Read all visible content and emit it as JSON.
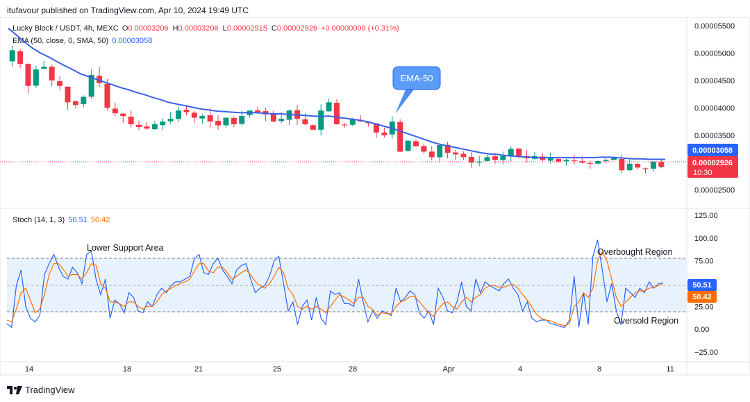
{
  "header": {
    "publisher": "itufavour published on TradingView.com, Apr 10, 2024 19:49 UTC"
  },
  "main_legend": {
    "symbol": "Lucky Block / USDT, 4h, MEXC",
    "o_label": "O",
    "o_value": "0.00003206",
    "h_label": "H",
    "h_value": "0.00003206",
    "l_label": "L",
    "l_value": "0.00002915",
    "c_label": "C",
    "c_value": "0.00002926",
    "change": "+0.00000009 (+0.31%)",
    "ema_label": "EMA (50, close, 0, SMA, 50)",
    "ema_value": "0.00003058"
  },
  "stoch_legend": {
    "label": "Stoch (14, 1, 3)",
    "k_value": "50.51",
    "d_value": "50.42"
  },
  "annotations": {
    "ema_callout": "EMA-50",
    "lower_support": "Lower Support Area",
    "overbought": "Overbought Region",
    "oversold": "Oversold Region"
  },
  "badges": {
    "ema_price": "0.00003058",
    "last_price": "0.00002926",
    "countdown": "10:30",
    "k_value": "50.51",
    "d_value": "50.42"
  },
  "logo_text": "TradingView",
  "colors": {
    "up": "#089981",
    "down": "#f23645",
    "ema": "#3861e6",
    "stoch_k": "#2962ff",
    "stoch_d": "#ff6d00",
    "band_fill": "#e8f2fd"
  },
  "chart_data": [
    {
      "type": "candlestick",
      "title": "Lucky Block / USDT, 4h, MEXC",
      "y_ticks": [
        "0.00005500",
        "0.00005000",
        "0.00004500",
        "0.00004000",
        "0.00003500",
        "0.00003000",
        "0.00002500"
      ],
      "ylim": [
        2.18e-05,
        5.65e-05
      ],
      "x_ticks": [
        "14",
        "18",
        "21",
        "25",
        "28",
        "Apr",
        "4",
        "8",
        "11"
      ],
      "close_series_approx": [
        5.05e-05,
        4.8e-05,
        4.4e-05,
        4.7e-05,
        4.75e-05,
        4.5e-05,
        4.4e-05,
        4.1e-05,
        4.05e-05,
        4.2e-05,
        4.6e-05,
        4.45e-05,
        4e-05,
        3.9e-05,
        3.85e-05,
        3.7e-05,
        3.65e-05,
        3.62e-05,
        3.7e-05,
        3.75e-05,
        3.8e-05,
        3.95e-05,
        3.92e-05,
        3.82e-05,
        3.85e-05,
        3.75e-05,
        3.68e-05,
        3.82e-05,
        3.7e-05,
        3.85e-05,
        3.95e-05,
        3.92e-05,
        3.88e-05,
        3.75e-05,
        3.8e-05,
        3.95e-05,
        3.8e-05,
        3.7e-05,
        3.6e-05,
        3.95e-05,
        4.1e-05,
        3.7e-05,
        3.68e-05,
        3.8e-05,
        3.75e-05,
        3.72e-05,
        3.55e-05,
        3.5e-05,
        3.75e-05,
        3.2e-05,
        3.4e-05,
        3.3e-05,
        3.2e-05,
        3.1e-05,
        3.32e-05,
        3.18e-05,
        3.15e-05,
        3.1e-05,
        3e-05,
        3.02e-05,
        3.1e-05,
        3.05e-05,
        3.12e-05,
        3.25e-05,
        3.12e-05,
        3.08e-05,
        3.12e-05,
        3.05e-05,
        3.08e-05,
        3.02e-05,
        3.05e-05,
        3.03e-05,
        3e-05,
        2.98e-05,
        3.03e-05,
        3.05e-05,
        3.08e-05,
        2.86e-05,
        2.98e-05,
        2.91e-05,
        2.88e-05,
        3.02e-05,
        2.92e-05
      ],
      "ema_series_approx": [
        5.45e-05,
        5.33e-05,
        5.2e-05,
        5.09e-05,
        5e-05,
        4.93e-05,
        4.85e-05,
        4.77e-05,
        4.7e-05,
        4.62e-05,
        4.57e-05,
        4.52e-05,
        4.47e-05,
        4.42e-05,
        4.37e-05,
        4.33e-05,
        4.28e-05,
        4.24e-05,
        4.19e-05,
        4.15e-05,
        4.1e-05,
        4.07e-05,
        4.04e-05,
        4.01e-05,
        3.98e-05,
        3.96e-05,
        3.94e-05,
        3.93e-05,
        3.92e-05,
        3.91e-05,
        3.91e-05,
        3.91e-05,
        3.9e-05,
        3.89e-05,
        3.89e-05,
        3.88e-05,
        3.87e-05,
        3.86e-05,
        3.85e-05,
        3.84e-05,
        3.85e-05,
        3.83e-05,
        3.81e-05,
        3.79e-05,
        3.77e-05,
        3.74e-05,
        3.7e-05,
        3.66e-05,
        3.62e-05,
        3.57e-05,
        3.52e-05,
        3.47e-05,
        3.42e-05,
        3.37e-05,
        3.33e-05,
        3.3e-05,
        3.27e-05,
        3.24e-05,
        3.21e-05,
        3.18e-05,
        3.16e-05,
        3.15e-05,
        3.13e-05,
        3.12e-05,
        3.11e-05,
        3.1e-05,
        3.09e-05,
        3.09e-05,
        3.09e-05,
        3.09e-05,
        3.09e-05,
        3.09e-05,
        3.09e-05,
        3.09e-05,
        3.1e-05,
        3.1e-05,
        3.09e-05,
        3.08e-05,
        3.07e-05,
        3.07e-05,
        3.06e-05,
        3.06e-05,
        3.06e-05
      ],
      "last_close": 2.926e-05,
      "ema_last": 3.058e-05
    },
    {
      "type": "line",
      "title": "Stoch (14, 1, 3)",
      "y_ticks": [
        "125.00",
        "100.00",
        "75.00",
        "50.00",
        "25.00",
        "0.00",
        "−25.00"
      ],
      "ylim": [
        -35,
        132
      ],
      "bands": {
        "upper": 80,
        "middle": 50,
        "lower": 20
      },
      "series": [
        {
          "name": "%K",
          "values": [
            6,
            2,
            48,
            65,
            25,
            12,
            8,
            15,
            60,
            72,
            82,
            68,
            58,
            55,
            68,
            62,
            50,
            82,
            86,
            55,
            38,
            55,
            12,
            32,
            28,
            18,
            40,
            35,
            20,
            18,
            30,
            25,
            38,
            45,
            40,
            48,
            52,
            52,
            55,
            58,
            78,
            82,
            62,
            60,
            72,
            78,
            65,
            58,
            50,
            65,
            70,
            72,
            55,
            40,
            45,
            48,
            58,
            75,
            80,
            50,
            20,
            30,
            5,
            25,
            32,
            10,
            35,
            12,
            5,
            42,
            38,
            40,
            28,
            28,
            25,
            55,
            30,
            8,
            20,
            12,
            20,
            18,
            15,
            45,
            30,
            35,
            42,
            38,
            18,
            12,
            20,
            5,
            45,
            35,
            20,
            18,
            30,
            52,
            25,
            20,
            55,
            40,
            52,
            48,
            45,
            42,
            50,
            55,
            45,
            38,
            20,
            30,
            12,
            8,
            10,
            10,
            6,
            5,
            3,
            2,
            10,
            58,
            2,
            40,
            5,
            80,
            98,
            65,
            30,
            50,
            20,
            5,
            45,
            40,
            35,
            45,
            40,
            52,
            45,
            50,
            51
          ]
        },
        {
          "name": "%D",
          "values": [
            10,
            8,
            22,
            40,
            45,
            32,
            18,
            22,
            38,
            60,
            72,
            72,
            66,
            58,
            60,
            60,
            55,
            62,
            72,
            70,
            50,
            45,
            30,
            30,
            28,
            25,
            30,
            30,
            25,
            22,
            25,
            25,
            30,
            38,
            42,
            45,
            48,
            50,
            52,
            55,
            64,
            72,
            72,
            64,
            62,
            68,
            68,
            62,
            55,
            58,
            62,
            65,
            60,
            52,
            48,
            45,
            50,
            58,
            68,
            62,
            45,
            38,
            25,
            22,
            25,
            22,
            25,
            22,
            18,
            25,
            32,
            38,
            35,
            32,
            28,
            35,
            35,
            25,
            22,
            15,
            18,
            17,
            17,
            25,
            30,
            32,
            36,
            36,
            30,
            24,
            18,
            14,
            22,
            28,
            30,
            25,
            22,
            30,
            35,
            30,
            35,
            38,
            45,
            48,
            48,
            46,
            46,
            48,
            49,
            45,
            38,
            32,
            24,
            16,
            12,
            10,
            9,
            7,
            5,
            4,
            6,
            25,
            30,
            40,
            35,
            45,
            75,
            85,
            75,
            55,
            35,
            25,
            30,
            35,
            40,
            42,
            42,
            45,
            46,
            48,
            50
          ]
        }
      ]
    }
  ]
}
